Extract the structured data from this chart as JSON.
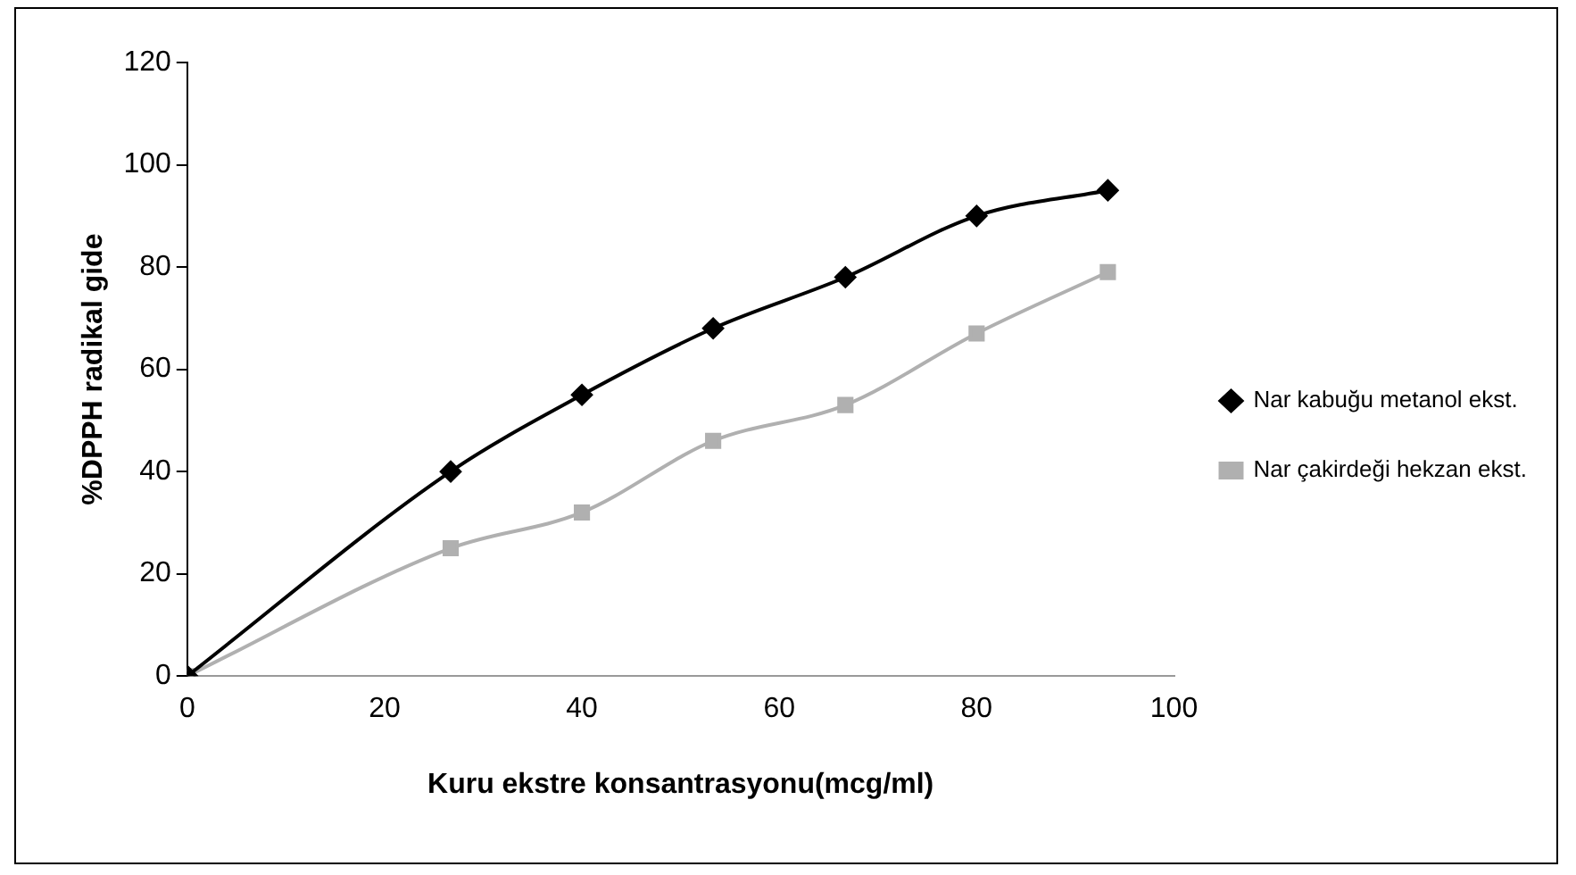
{
  "chart_data": {
    "type": "line",
    "xlabel": "Kuru ekstre konsantrasyonu(mcg/ml)",
    "ylabel": "%DPPH radikal gide",
    "series": [
      {
        "name": "Nar kabuğu metanol ekst.",
        "color": "#000000",
        "marker": "diamond",
        "x": [
          0,
          26.7,
          40,
          53.3,
          66.7,
          80,
          93.3
        ],
        "values": [
          0,
          40,
          55,
          68,
          78,
          90,
          95
        ]
      },
      {
        "name": "Nar çakirdeği hekzan ekst.",
        "color": "#b0b0b0",
        "marker": "square",
        "x": [
          0,
          26.7,
          40,
          53.3,
          66.7,
          80,
          93.3
        ],
        "values": [
          0,
          25,
          32,
          46,
          53,
          67,
          79
        ]
      }
    ],
    "xlim": [
      0,
      100
    ],
    "xticks": [
      0,
      20,
      40,
      60,
      80,
      100
    ],
    "ylim": [
      0,
      120
    ],
    "yticks": [
      0,
      20,
      40,
      60,
      80,
      100,
      120
    ],
    "grid": false,
    "legend": "right",
    "line_style": "solid"
  }
}
